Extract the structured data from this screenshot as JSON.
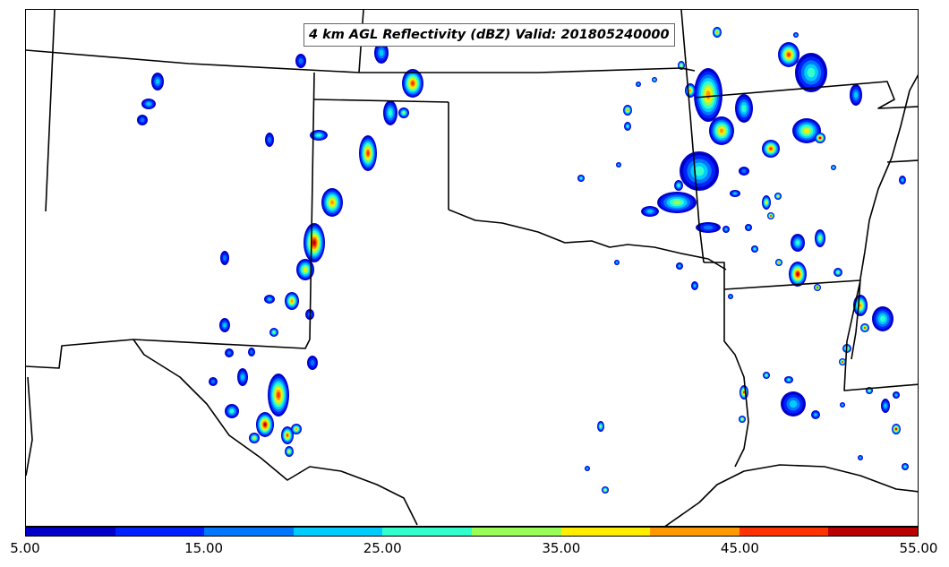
{
  "map": {
    "title": "4 km AGL Reflectivity (dBZ) Valid: 201805240000"
  },
  "colorbar": {
    "colors": [
      "#0000c8",
      "#0022ff",
      "#0077ff",
      "#00ccff",
      "#33ffcc",
      "#99ff55",
      "#ffee00",
      "#ff9900",
      "#ff3300",
      "#bb0000"
    ],
    "labels": [
      "5.00",
      "15.00",
      "25.00",
      "35.00",
      "45.00",
      "55.00"
    ]
  }
}
